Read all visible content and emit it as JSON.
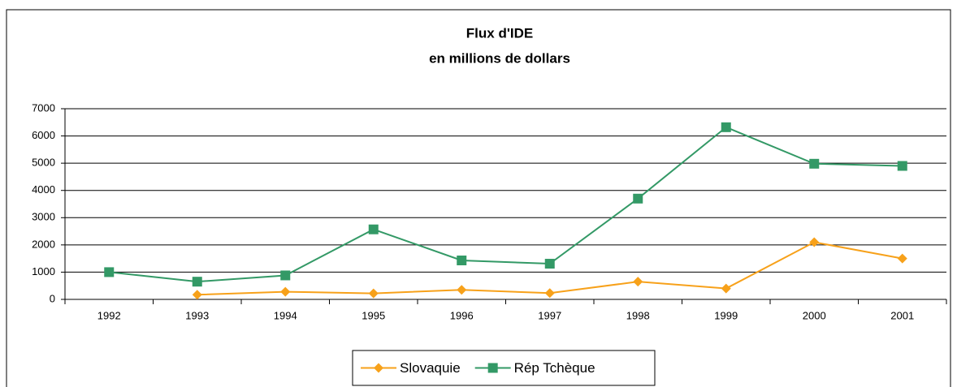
{
  "chart_data": {
    "type": "line",
    "title": "Flux d'IDE",
    "subtitle": "en millions de dollars",
    "categories": [
      "1992",
      "1993",
      "1994",
      "1995",
      "1996",
      "1997",
      "1998",
      "1999",
      "2000",
      "2001"
    ],
    "series": [
      {
        "name": "Slovaquie",
        "color": "#f7a11a",
        "marker": "diamond",
        "values": [
          null,
          170,
          280,
          220,
          350,
          230,
          650,
          400,
          2100,
          1500
        ]
      },
      {
        "name": "Rép Tchèque",
        "color": "#339966",
        "marker": "square",
        "values": [
          1000,
          650,
          880,
          2570,
          1430,
          1310,
          3700,
          6320,
          4980,
          4900
        ]
      }
    ],
    "ylim": [
      0,
      7000
    ],
    "yticks": [
      0,
      1000,
      2000,
      3000,
      4000,
      5000,
      6000,
      7000
    ],
    "grid": true,
    "legend": "bottom"
  }
}
